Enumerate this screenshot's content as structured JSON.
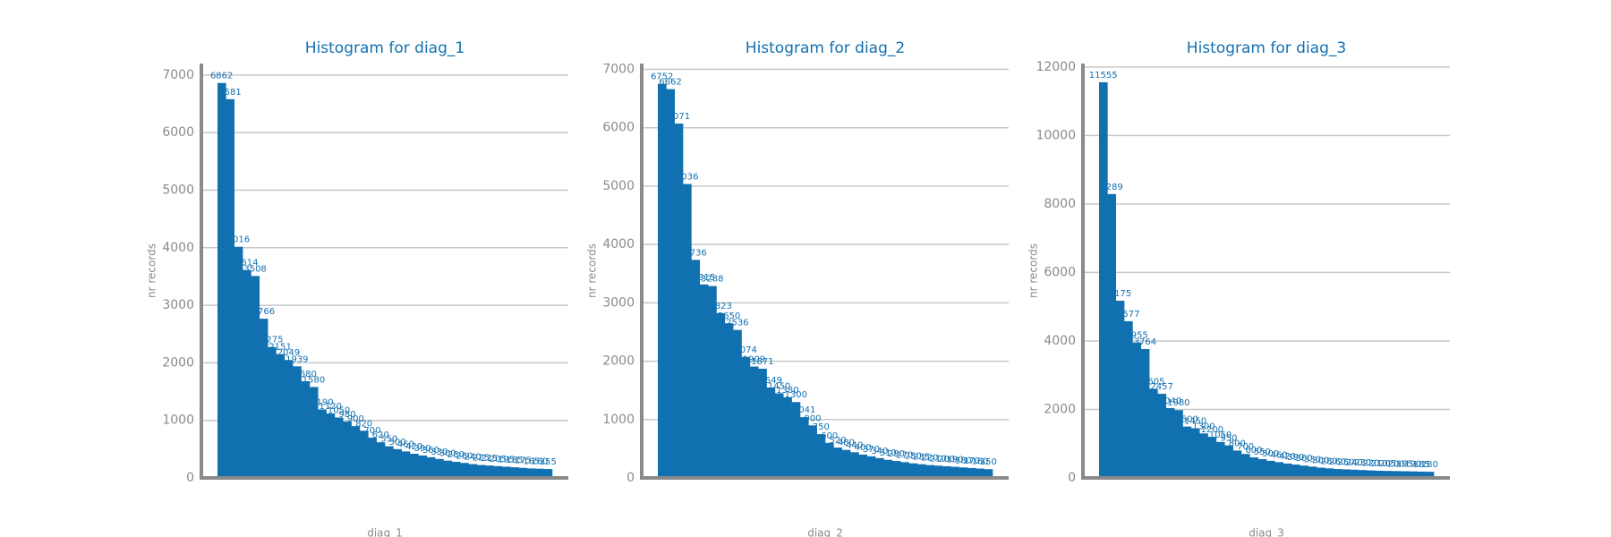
{
  "chart_data": [
    {
      "type": "bar",
      "title": "Histogram for diag_1",
      "ylabel": "nr records",
      "xlabel": "diag_1",
      "color": "#1170b0",
      "grid": true,
      "ylim": [
        0,
        7200
      ],
      "yticks": [
        0,
        1000,
        2000,
        3000,
        4000,
        5000,
        6000,
        7000
      ],
      "categories": [
        null,
        null,
        null,
        null,
        null,
        null,
        null,
        null,
        null,
        null,
        null,
        null,
        null,
        null,
        null,
        null,
        null,
        null,
        null,
        null,
        null,
        null,
        null,
        null,
        null,
        null,
        null,
        null,
        null,
        null,
        null,
        null,
        null,
        null,
        null,
        null,
        null,
        null,
        null,
        null
      ],
      "values": [
        6862,
        6581,
        4016,
        3614,
        3508,
        2766,
        2275,
        2151,
        2049,
        1939,
        1680,
        1580,
        1190,
        1120,
        1050,
        980,
        900,
        820,
        700,
        620,
        550,
        500,
        460,
        420,
        390,
        360,
        330,
        300,
        280,
        260,
        240,
        225,
        215,
        205,
        195,
        185,
        175,
        165,
        160,
        155
      ]
    },
    {
      "type": "bar",
      "title": "Histogram for diag_2",
      "ylabel": "nr records",
      "xlabel": "diag_2",
      "color": "#1170b0",
      "grid": true,
      "ylim": [
        0,
        7100
      ],
      "yticks": [
        0,
        1000,
        2000,
        3000,
        4000,
        5000,
        6000,
        7000
      ],
      "categories": [
        null,
        null,
        null,
        null,
        null,
        null,
        null,
        null,
        null,
        null,
        null,
        null,
        null,
        null,
        null,
        null,
        null,
        null,
        null,
        null,
        null,
        null,
        null,
        null,
        null,
        null,
        null,
        null,
        null,
        null,
        null,
        null,
        null,
        null,
        null,
        null,
        null,
        null,
        null,
        null
      ],
      "values": [
        6752,
        6662,
        6071,
        5036,
        3736,
        3315,
        3288,
        2823,
        2650,
        2536,
        2074,
        1909,
        1871,
        1549,
        1450,
        1380,
        1300,
        1041,
        900,
        750,
        600,
        520,
        480,
        440,
        400,
        370,
        340,
        310,
        290,
        270,
        250,
        235,
        220,
        210,
        200,
        190,
        180,
        170,
        160,
        150
      ]
    },
    {
      "type": "bar",
      "title": "Histogram for diag_3",
      "ylabel": "nr records",
      "xlabel": "diag_3",
      "color": "#1170b0",
      "grid": true,
      "ylim": [
        0,
        12100
      ],
      "yticks": [
        0,
        2000,
        4000,
        6000,
        8000,
        10000,
        12000
      ],
      "categories": [
        null,
        null,
        null,
        null,
        null,
        null,
        null,
        null,
        null,
        null,
        null,
        null,
        null,
        null,
        null,
        null,
        null,
        null,
        null,
        null,
        null,
        null,
        null,
        null,
        null,
        null,
        null,
        null,
        null,
        null,
        null,
        null,
        null,
        null,
        null,
        null,
        null,
        null,
        null,
        null
      ],
      "values": [
        11555,
        8289,
        5175,
        4577,
        3955,
        3764,
        2605,
        2457,
        2040,
        1980,
        1500,
        1450,
        1300,
        1200,
        1050,
        950,
        800,
        700,
        600,
        550,
        500,
        460,
        420,
        390,
        360,
        330,
        300,
        280,
        260,
        250,
        240,
        230,
        220,
        210,
        205,
        200,
        195,
        190,
        185,
        180
      ]
    }
  ]
}
